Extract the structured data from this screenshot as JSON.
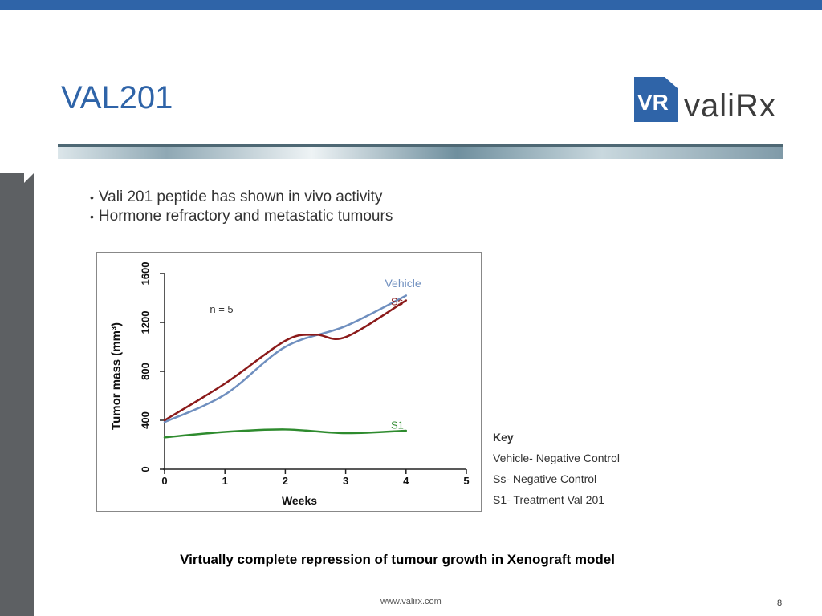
{
  "slide": {
    "title": "VAL201",
    "logo": {
      "box_text": "VR",
      "word": "valiRx"
    },
    "bullets": [
      "Vali 201 peptide has shown in vivo activity",
      "Hormone refractory and metastatic tumours"
    ],
    "key": {
      "title": "Key",
      "items": [
        "Vehicle- Negative Control",
        "Ss- Negative Control",
        "S1- Treatment Val 201"
      ]
    },
    "caption": "Virtually complete repression of  tumour growth in Xenograft model",
    "footer_url": "www.valirx.com",
    "page_number": "8"
  },
  "colors": {
    "accent": "#2f64a8",
    "vehicle": "#6f8fbf",
    "ss": "#8b1a1a",
    "s1": "#2e8b2e"
  },
  "chart_data": {
    "type": "line",
    "xlabel": "Weeks",
    "ylabel": "Tumor mass (mm³)",
    "xlim": [
      0,
      5
    ],
    "ylim": [
      0,
      1600
    ],
    "xticks": [
      0,
      1,
      2,
      3,
      4,
      5
    ],
    "yticks": [
      0,
      400,
      800,
      1200,
      1600
    ],
    "annotation": "n = 5",
    "grid": false,
    "series": [
      {
        "name": "Vehicle",
        "x": [
          0,
          1,
          2,
          3,
          4
        ],
        "values": [
          385,
          610,
          1000,
          1170,
          1420
        ]
      },
      {
        "name": "Ss",
        "x": [
          0,
          1,
          2,
          2.5,
          3,
          4
        ],
        "values": [
          400,
          700,
          1050,
          1100,
          1080,
          1380
        ]
      },
      {
        "name": "S1",
        "x": [
          0,
          1,
          2,
          3,
          4
        ],
        "values": [
          260,
          305,
          325,
          295,
          315
        ]
      }
    ]
  }
}
